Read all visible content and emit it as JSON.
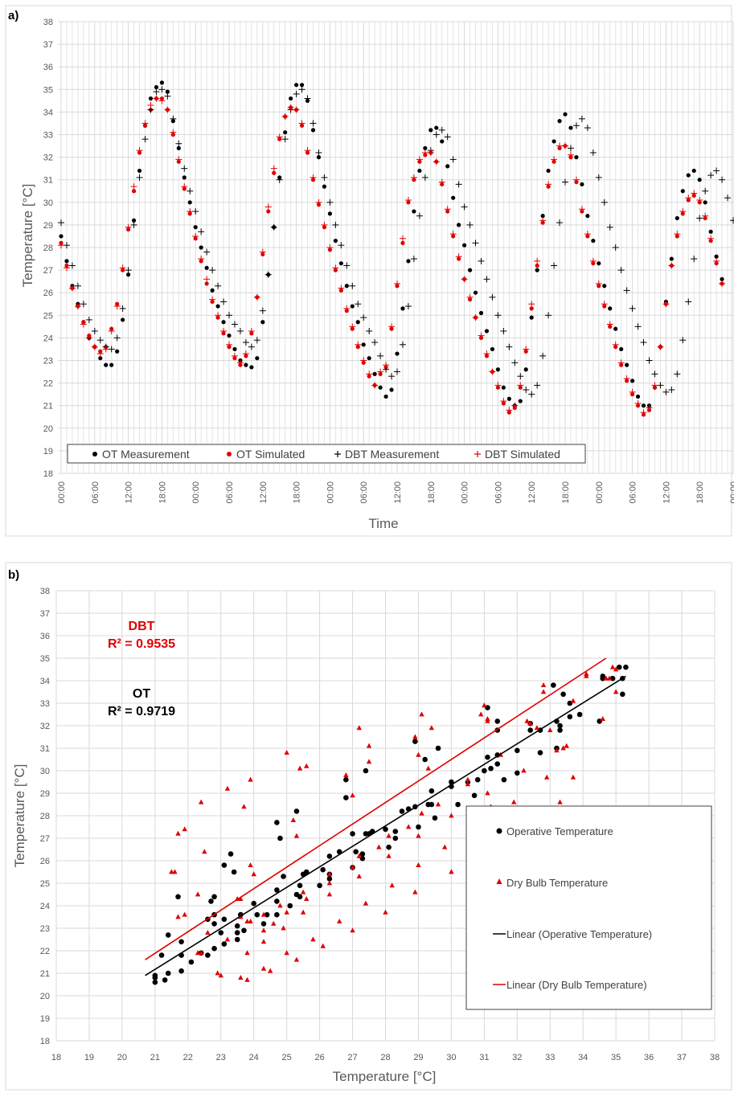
{
  "chart_data": [
    {
      "panel_label": "a)",
      "type": "scatter",
      "ylabel": "Temperature [°C]",
      "xlabel": "Time",
      "ylim": [
        18,
        38
      ],
      "yticks": [
        18,
        19,
        20,
        21,
        22,
        23,
        24,
        25,
        26,
        27,
        28,
        29,
        30,
        31,
        32,
        33,
        34,
        35,
        36,
        37,
        38
      ],
      "xticks": [
        "00:00",
        "06:00",
        "12:00",
        "18:00",
        "00:00",
        "06:00",
        "12:00",
        "18:00",
        "00:00",
        "06:00",
        "12:00",
        "18:00",
        "00:00",
        "06:00",
        "12:00",
        "18:00",
        "00:00",
        "06:00",
        "12:00",
        "18:00",
        "00:00"
      ],
      "grid": true,
      "legend_position": "bottom",
      "series": [
        {
          "name": "OT Measurement",
          "marker": "dot",
          "color": "#000000",
          "values": [
            28.5,
            27.4,
            26.3,
            25.5,
            24.7,
            24.0,
            23.6,
            23.1,
            22.8,
            22.8,
            23.4,
            24.8,
            26.8,
            29.2,
            31.4,
            33.4,
            34.6,
            35.1,
            35.3,
            34.9,
            33.6,
            32.4,
            31.1,
            30.0,
            28.9,
            28.0,
            27.1,
            26.1,
            25.4,
            24.7,
            24.1,
            23.5,
            23.0,
            22.8,
            22.7,
            23.1,
            24.7,
            26.8,
            28.9,
            31.1,
            33.1,
            34.6,
            35.2,
            35.2,
            34.5,
            33.2,
            32.0,
            30.7,
            29.5,
            28.3,
            27.3,
            26.3,
            25.4,
            24.7,
            23.7,
            23.1,
            22.4,
            21.8,
            21.4,
            21.7,
            23.3,
            25.3,
            27.4,
            29.6,
            31.4,
            32.4,
            33.2,
            33.3,
            32.7,
            31.6,
            30.2,
            29.0,
            28.1,
            27.0,
            26.0,
            25.1,
            24.3,
            23.5,
            22.6,
            21.8,
            21.3,
            21.0,
            21.2,
            22.6,
            24.9,
            27.0,
            29.4,
            31.4,
            32.7,
            33.6,
            33.9,
            33.3,
            32.0,
            30.8,
            29.4,
            28.3,
            27.3,
            26.3,
            25.3,
            24.4,
            23.5,
            22.8,
            22.1,
            21.4,
            21.0,
            21.0,
            21.8,
            23.6,
            25.6,
            27.5,
            29.3,
            30.5,
            31.2,
            31.4,
            31.0,
            30.0,
            28.7,
            27.6,
            26.6
          ]
        },
        {
          "name": "OT Simulated",
          "marker": "dot",
          "color": "#e00000",
          "values": [
            28.2,
            27.2,
            26.2,
            25.4,
            24.7,
            24.1,
            23.6,
            23.4,
            23.6,
            24.4,
            25.5,
            27.0,
            28.8,
            30.5,
            32.2,
            33.4,
            34.1,
            34.6,
            34.6,
            34.1,
            33.0,
            31.8,
            30.6,
            29.5,
            28.4,
            27.4,
            26.4,
            25.6,
            24.9,
            24.2,
            23.6,
            23.1,
            22.8,
            23.2,
            24.2,
            25.8,
            27.7,
            29.6,
            31.3,
            32.8,
            33.8,
            34.2,
            34.1,
            33.4,
            32.2,
            31.0,
            29.9,
            28.9,
            27.9,
            27.0,
            26.1,
            25.2,
            24.4,
            23.6,
            22.9,
            22.3,
            21.9,
            22.4,
            22.7,
            24.4,
            26.3,
            28.2,
            30.0,
            31.0,
            31.8,
            32.1,
            32.2,
            31.8,
            30.8,
            29.6,
            28.5,
            27.5,
            26.6,
            25.7,
            24.9,
            24.0,
            23.2,
            22.5,
            21.8,
            21.1,
            20.7,
            20.9,
            21.8,
            23.4,
            25.3,
            27.2,
            29.1,
            30.7,
            31.8,
            32.4,
            32.5,
            32.0,
            30.9,
            29.6,
            28.5,
            27.3,
            26.3,
            25.4,
            24.5,
            23.6,
            22.8,
            22.1,
            21.5,
            21.0,
            20.6,
            20.8,
            21.8,
            23.6,
            25.5,
            27.2,
            28.5,
            29.5,
            30.1,
            30.3,
            30.0,
            29.3,
            28.3,
            27.3,
            26.4
          ]
        },
        {
          "name": "DBT Measurement",
          "marker": "plus",
          "color": "#000000",
          "values": [
            29.1,
            28.1,
            27.2,
            26.3,
            25.5,
            24.8,
            24.3,
            23.9,
            23.6,
            23.5,
            24.0,
            25.3,
            27.0,
            29.0,
            31.1,
            32.8,
            34.1,
            34.9,
            35.0,
            34.7,
            33.7,
            32.6,
            31.5,
            30.5,
            29.6,
            28.7,
            27.8,
            27.0,
            26.3,
            25.6,
            25.0,
            24.6,
            24.3,
            23.8,
            23.6,
            23.9,
            25.2,
            26.8,
            28.9,
            31.0,
            32.8,
            34.1,
            34.8,
            35.0,
            34.6,
            33.5,
            32.2,
            31.1,
            30.0,
            29.0,
            28.1,
            27.2,
            26.3,
            25.5,
            24.9,
            24.3,
            23.8,
            23.2,
            22.6,
            22.3,
            22.5,
            23.7,
            25.4,
            27.5,
            29.4,
            31.1,
            32.3,
            33.0,
            33.2,
            32.9,
            31.9,
            30.8,
            29.8,
            29.0,
            28.2,
            27.4,
            26.6,
            25.8,
            25.0,
            24.3,
            23.6,
            22.9,
            22.3,
            21.7,
            21.5,
            21.9,
            23.2,
            25.0,
            27.2,
            29.1,
            30.9,
            32.4,
            33.4,
            33.7,
            33.3,
            32.2,
            31.1,
            30.0,
            28.9,
            28.0,
            27.0,
            26.1,
            25.3,
            24.5,
            23.8,
            23.0,
            22.4,
            21.9,
            21.6,
            21.7,
            22.4,
            23.9,
            25.6,
            27.5,
            29.3,
            30.5,
            31.2,
            31.4,
            31.0,
            30.2,
            29.2,
            28.3,
            27.3
          ]
        },
        {
          "name": "DBT Simulated",
          "marker": "plus",
          "color": "#e00000",
          "values": [
            28.1,
            27.1,
            26.2,
            25.4,
            24.6,
            24.0,
            23.6,
            23.3,
            23.5,
            24.3,
            25.4,
            27.1,
            28.9,
            30.7,
            32.3,
            33.5,
            34.3,
            34.6,
            34.5,
            34.1,
            33.1,
            31.9,
            30.7,
            29.6,
            28.5,
            27.5,
            26.6,
            25.7,
            25.0,
            24.3,
            23.7,
            23.2,
            22.9,
            23.3,
            24.3,
            25.8,
            27.8,
            29.8,
            31.5,
            32.9,
            33.8,
            34.2,
            34.1,
            33.5,
            32.3,
            31.1,
            30.0,
            29.0,
            28.0,
            27.1,
            26.2,
            25.3,
            24.5,
            23.7,
            23.0,
            22.4,
            21.9,
            22.5,
            22.8,
            24.5,
            26.4,
            28.4,
            30.1,
            31.1,
            31.9,
            32.2,
            32.2,
            31.8,
            30.9,
            29.7,
            28.6,
            27.6,
            26.6,
            25.8,
            24.9,
            24.1,
            23.3,
            22.5,
            21.9,
            21.2,
            20.8,
            21.0,
            21.9,
            23.5,
            25.5,
            27.4,
            29.2,
            30.8,
            31.9,
            32.5,
            32.5,
            32.1,
            31.0,
            29.7,
            28.6,
            27.4,
            26.4,
            25.5,
            24.6,
            23.7,
            22.9,
            22.2,
            21.6,
            21.1,
            20.7,
            20.9,
            21.9,
            23.6,
            25.5,
            27.2,
            28.6,
            29.6,
            30.2,
            30.4,
            30.1,
            29.4,
            28.4,
            27.4,
            26.4
          ]
        }
      ]
    },
    {
      "panel_label": "b)",
      "type": "scatter",
      "xlabel": "Temperature [°C]",
      "ylabel": "Temperature [°C]",
      "xlim": [
        18,
        38
      ],
      "ylim": [
        18,
        38
      ],
      "ticks": [
        18,
        19,
        20,
        21,
        22,
        23,
        24,
        25,
        26,
        27,
        28,
        29,
        30,
        31,
        32,
        33,
        34,
        35,
        36,
        37,
        38
      ],
      "grid": true,
      "legend_position": "right",
      "annotations": [
        {
          "title": "DBT",
          "r2": "R² = 0.9535",
          "color": "#e00000"
        },
        {
          "title": "OT",
          "r2": "R² = 0.9719",
          "color": "#000000"
        }
      ],
      "legend": [
        "Operative Temperature",
        "Dry Bulb Temperature",
        "Linear (Operative Temperature)",
        "Linear (Dry Bulb Temperature)"
      ],
      "trendlines": [
        {
          "name": "Linear (Operative Temperature)",
          "color": "#000000",
          "x": [
            20.7,
            35.3
          ],
          "y": [
            20.9,
            34.2
          ]
        },
        {
          "name": "Linear (Dry Bulb Temperature)",
          "color": "#e00000",
          "x": [
            20.7,
            34.7
          ],
          "y": [
            21.6,
            35.0
          ]
        }
      ],
      "series": [
        {
          "name": "Operative Temperature",
          "marker": "dot",
          "color": "#000000",
          "x_from": "panel_a",
          "y_from": "panel_a",
          "pair": [
            "OT Measurement",
            "OT Simulated"
          ]
        },
        {
          "name": "Dry Bulb Temperature",
          "marker": "triangle",
          "color": "#e00000",
          "pair": [
            "DBT Measurement",
            "DBT Simulated"
          ]
        }
      ]
    }
  ]
}
